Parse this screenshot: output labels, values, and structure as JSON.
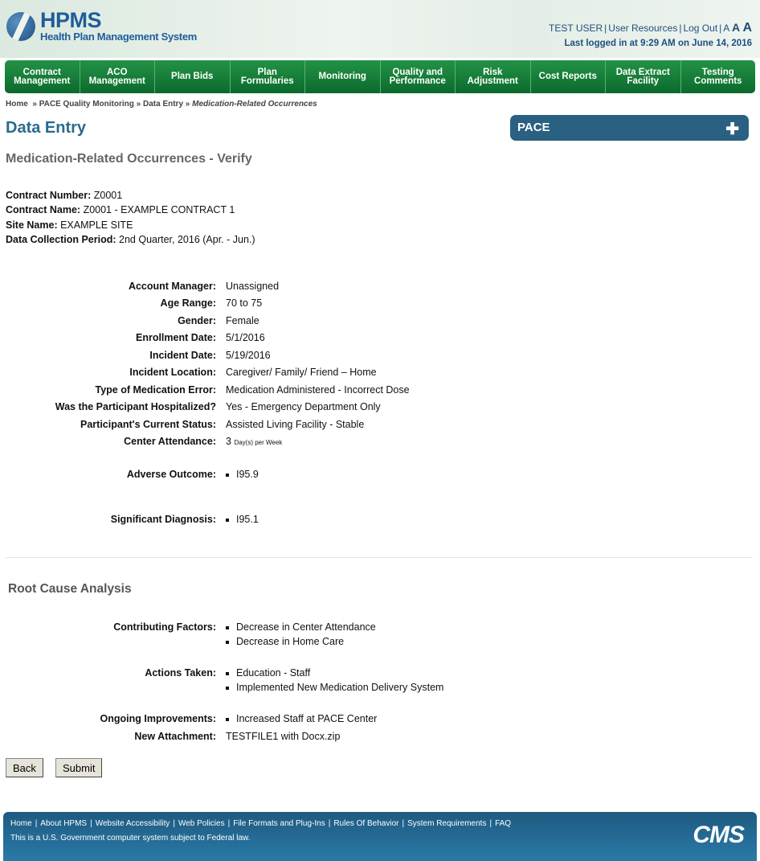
{
  "header": {
    "logo_title": "HPMS",
    "logo_subtitle": "Health Plan Management System",
    "user": "TEST USER",
    "user_resources": "User Resources",
    "logout": "Log Out",
    "font_small": "A",
    "font_medium": "A",
    "font_large": "A",
    "last_login": "Last logged in at 9:29 AM on June 14, 2016"
  },
  "nav": [
    "Contract\nManagement",
    "ACO\nManagement",
    "Plan Bids",
    "Plan\nFormularies",
    "Monitoring",
    "Quality and\nPerformance",
    "Risk\nAdjustment",
    "Cost Reports",
    "Data Extract\nFacility",
    "Testing\nComments"
  ],
  "breadcrumb": {
    "items": [
      "Home",
      "PACE Quality Monitoring",
      "Data Entry"
    ],
    "current": "Medication-Related Occurrences"
  },
  "page_title": "Data Entry",
  "side_panel": {
    "title": "PACE",
    "icon": "plus-icon"
  },
  "subtitle": "Medication-Related Occurrences - Verify",
  "contract": [
    {
      "label": "Contract Number:",
      "value": "Z0001"
    },
    {
      "label": "Contract Name:",
      "value": "Z0001 - EXAMPLE CONTRACT 1"
    },
    {
      "label": "Site Name:",
      "value": "EXAMPLE SITE"
    },
    {
      "label": "Data Collection Period:",
      "value": "2nd Quarter, 2016 (Apr. - Jun.)"
    }
  ],
  "fields": [
    {
      "label": "Account Manager:",
      "value": "Unassigned"
    },
    {
      "label": "Age Range:",
      "value": "70 to 75"
    },
    {
      "label": "Gender:",
      "value": "Female"
    },
    {
      "label": "Enrollment Date:",
      "value": "5/1/2016"
    },
    {
      "label": "Incident Date:",
      "value": "5/19/2016"
    },
    {
      "label": "Incident Location:",
      "value": "Caregiver/ Family/ Friend – Home"
    },
    {
      "label": "Type of Medication Error:",
      "value": "Medication Administered - Incorrect Dose"
    },
    {
      "label": "Was the Participant Hospitalized?",
      "value": "Yes - Emergency Department Only"
    },
    {
      "label": "Participant's Current Status:",
      "value": "Assisted Living Facility - Stable"
    }
  ],
  "attendance": {
    "label": "Center Attendance:",
    "value": "3",
    "unit": "Day(s) per Week"
  },
  "adverse": {
    "label": "Adverse Outcome:",
    "items": [
      "I95.9"
    ]
  },
  "diagnosis": {
    "label": "Significant Diagnosis:",
    "items": [
      "I95.1"
    ]
  },
  "root_cause": {
    "title": "Root Cause Analysis",
    "contributing": {
      "label": "Contributing Factors:",
      "items": [
        "Decrease in Center Attendance",
        "Decrease in Home Care"
      ]
    },
    "actions": {
      "label": "Actions Taken:",
      "items": [
        "Education - Staff",
        "Implemented New Medication Delivery System"
      ]
    },
    "ongoing": {
      "label": "Ongoing Improvements:",
      "items": [
        "Increased Staff at PACE Center"
      ]
    },
    "attachment": {
      "label": "New Attachment:",
      "value": "TESTFILE1 with Docx.zip"
    }
  },
  "buttons": {
    "back": "Back",
    "submit": "Submit"
  },
  "footer": {
    "links": [
      "Home",
      "About HPMS",
      "Website Accessibility",
      "Web Policies",
      "File Formats and Plug-Ins",
      "Rules Of Behavior",
      "System Requirements",
      "FAQ"
    ],
    "notice": "This is a U.S. Government computer system subject to Federal law.",
    "logo": "CMS"
  }
}
